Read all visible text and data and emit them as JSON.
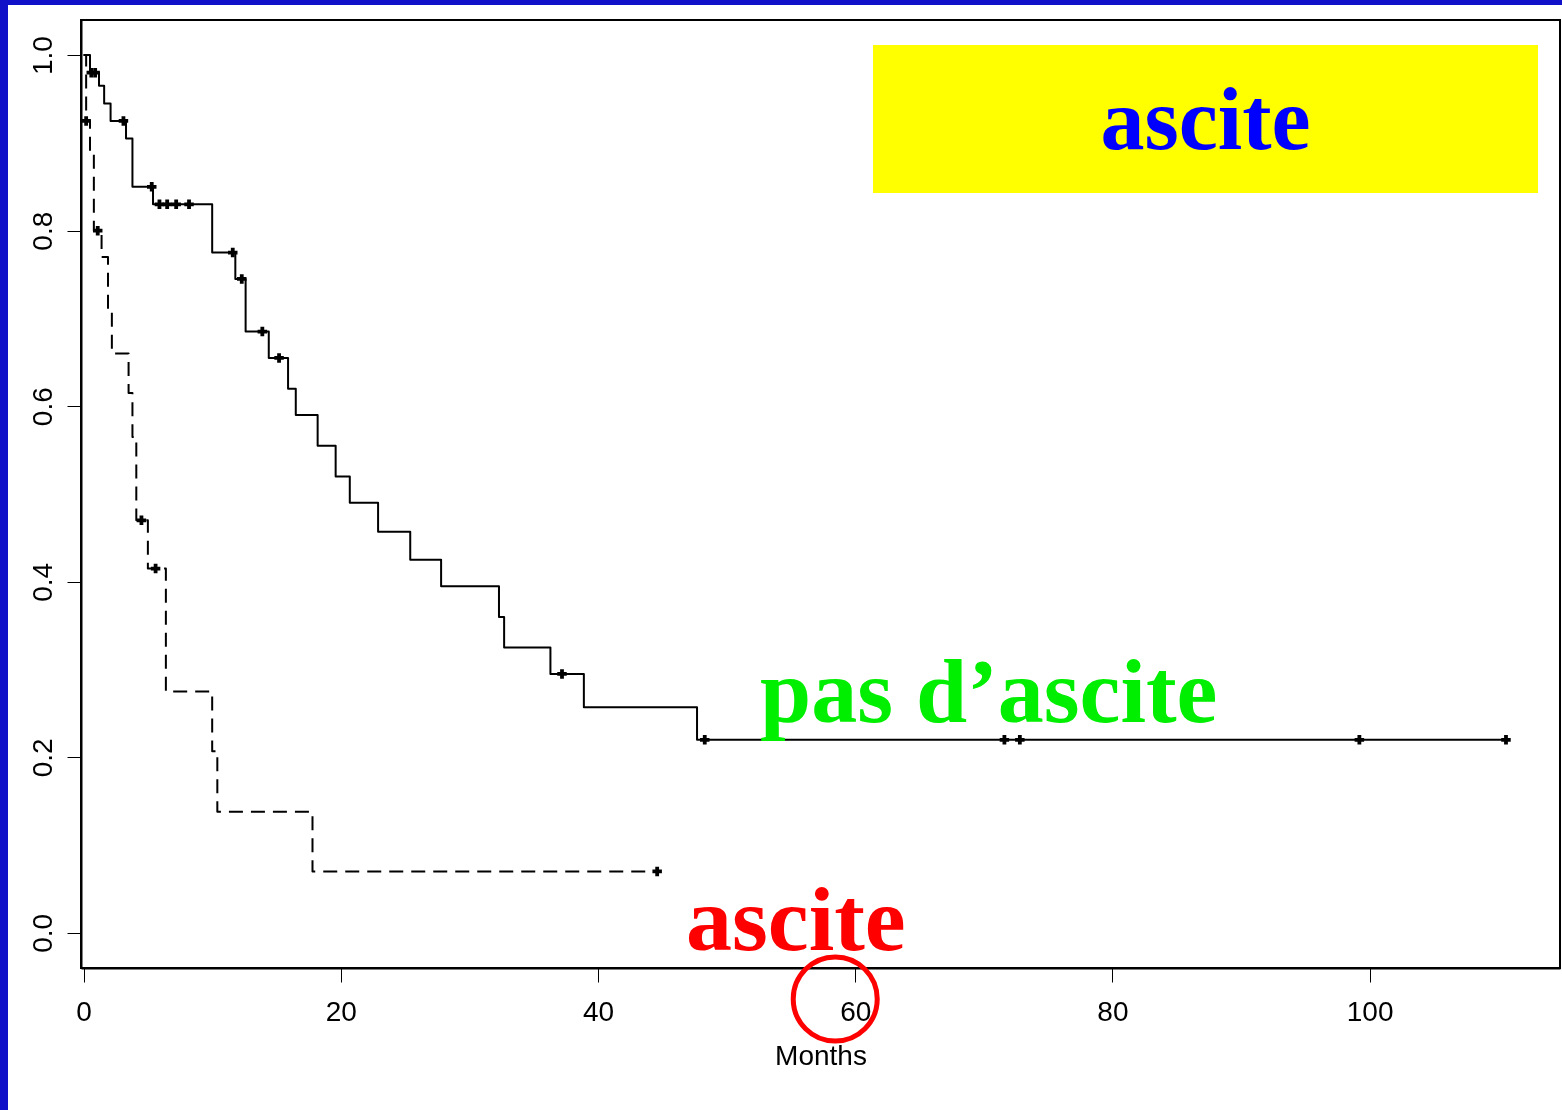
{
  "chart_data": {
    "type": "step",
    "title": "ascite",
    "xlabel": "Months",
    "xlim": [
      -0.2,
      114.8
    ],
    "ylim": [
      -0.04,
      1.04
    ],
    "xticks": [
      0,
      20,
      40,
      60,
      80,
      100
    ],
    "yticks": [
      {
        "value": 0,
        "label": "0.0"
      },
      0.2,
      0.4,
      0.6,
      0.8,
      {
        "value": 1,
        "label": "1.0"
      }
    ],
    "series": [
      {
        "color": "#000000",
        "line_style": "solid",
        "x": [
          0,
          0.5,
          1.2,
          1.6,
          2.1,
          3.3,
          3.8,
          5.4,
          10.0,
          11.8,
          12.6,
          14.4,
          15.9,
          16.5,
          18.2,
          19.6,
          20.7,
          22.9,
          25.4,
          27.8,
          32.3,
          32.7,
          36.3,
          38.9,
          47.7,
          110.6
        ],
        "values": [
          1.0,
          0.98,
          0.965,
          0.945,
          0.925,
          0.905,
          0.85,
          0.83,
          0.775,
          0.745,
          0.685,
          0.655,
          0.62,
          0.59,
          0.555,
          0.52,
          0.49,
          0.457,
          0.425,
          0.395,
          0.36,
          0.325,
          0.295,
          0.257,
          0.22,
          0.22
        ]
      },
      {
        "color": "#000000",
        "line_style": "dashed",
        "x": [
          0,
          0.2,
          0.5,
          0.8,
          1.4,
          1.9,
          2.2,
          3.5,
          3.8,
          4.1,
          5.0,
          6.4,
          10.0,
          10.4,
          17.8,
          44.6
        ],
        "values": [
          1.0,
          0.925,
          0.89,
          0.8,
          0.77,
          0.71,
          0.66,
          0.615,
          0.565,
          0.47,
          0.415,
          0.275,
          0.207,
          0.138,
          0.07,
          0.07
        ]
      },
      {
        "type": "scatter",
        "color": "#000000",
        "marker": "cross",
        "x": [
          0.6,
          0.9,
          3.1,
          5.3,
          5.9,
          6.5,
          7.2,
          8.2,
          11.6,
          12.3,
          13.9,
          15.2,
          37.2,
          48.3,
          71.6,
          72.8,
          99.2,
          110.6
        ],
        "values": [
          0.98,
          0.98,
          0.925,
          0.85,
          0.83,
          0.83,
          0.83,
          0.83,
          0.775,
          0.745,
          0.685,
          0.655,
          0.295,
          0.22,
          0.22,
          0.22,
          0.22,
          0.22
        ]
      },
      {
        "type": "scatter",
        "color": "#000000",
        "marker": "cross",
        "x": [
          0.2,
          1.1,
          4.5,
          5.6,
          44.6
        ],
        "values": [
          0.925,
          0.8,
          0.47,
          0.415,
          0.07
        ]
      }
    ],
    "grid": false,
    "annotations": [
      "pas d’ascite",
      "ascite"
    ]
  }
}
